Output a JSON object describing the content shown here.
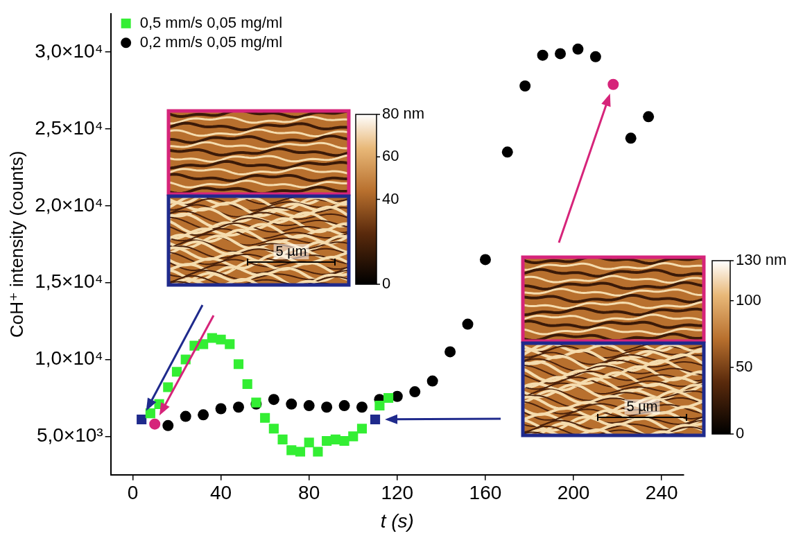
{
  "chart_data": {
    "type": "scatter",
    "x_label": "t (s)",
    "y_label": "CoH⁺ intensity (counts)",
    "xlim": [
      -10,
      250
    ],
    "xticks": [
      0,
      40,
      80,
      120,
      160,
      200,
      240
    ],
    "ylim": [
      2500,
      32500
    ],
    "yticks": [
      {
        "value": 5000,
        "label": "5,0×10³"
      },
      {
        "value": 10000,
        "label": "1,0×10⁴"
      },
      {
        "value": 15000,
        "label": "1,5×10⁴"
      },
      {
        "value": 20000,
        "label": "2,0×10⁴"
      },
      {
        "value": 25000,
        "label": "2,5×10⁴"
      },
      {
        "value": 30000,
        "label": "3,0×10⁴"
      }
    ],
    "grid": false,
    "legend": "upper left",
    "series": [
      {
        "name": "0,5 mm/s 0,05 mg/ml",
        "color": "#33ee33",
        "marker": "square",
        "x": [
          8,
          12,
          16,
          20,
          24,
          28,
          32,
          36,
          40,
          44,
          48,
          52,
          56,
          60,
          64,
          68,
          72,
          76,
          80,
          84,
          88,
          92,
          96,
          100,
          104,
          112,
          116
        ],
        "values": [
          6500,
          7100,
          8200,
          9200,
          10000,
          10900,
          11000,
          11400,
          11300,
          11000,
          9700,
          8400,
          7200,
          6200,
          5500,
          4800,
          4100,
          4000,
          4600,
          4000,
          4700,
          4800,
          4700,
          5000,
          5500,
          7000,
          7500
        ]
      },
      {
        "name": "0,2 mm/s 0,05 mg/ml",
        "color": "#000000",
        "marker": "circle",
        "x": [
          16,
          24,
          32,
          40,
          48,
          56,
          64,
          72,
          80,
          88,
          96,
          104,
          112,
          120,
          128,
          136,
          144,
          152,
          160,
          170,
          178,
          186,
          194,
          202,
          210,
          226,
          234
        ],
        "values": [
          5700,
          6300,
          6400,
          6800,
          6900,
          7100,
          7400,
          7100,
          7000,
          6900,
          7000,
          6900,
          7400,
          7600,
          7900,
          8600,
          10500,
          12300,
          16500,
          23500,
          27800,
          29800,
          29900,
          30200,
          29700,
          24400,
          25800
        ]
      }
    ],
    "highlights": [
      {
        "x": 4,
        "y": 6100,
        "color": "#1f2a8c",
        "marker": "square"
      },
      {
        "x": 10,
        "y": 5800,
        "color": "#d6247a",
        "marker": "circle"
      },
      {
        "x": 110,
        "y": 6100,
        "color": "#1f2a8c",
        "marker": "square"
      },
      {
        "x": 218,
        "y": 27900,
        "color": "#d6247a",
        "marker": "circle"
      }
    ],
    "insets": [
      {
        "colorbar_range": [
          0,
          80
        ],
        "colorbar_ticks": [
          0,
          40,
          60,
          {
            "value": 80,
            "label": "80 nm"
          }
        ],
        "scale_bar": "5 µm"
      },
      {
        "colorbar_range": [
          0,
          130
        ],
        "colorbar_ticks": [
          0,
          50,
          100,
          {
            "value": 130,
            "label": "130 nm"
          }
        ],
        "scale_bar": "5 µm"
      }
    ]
  }
}
